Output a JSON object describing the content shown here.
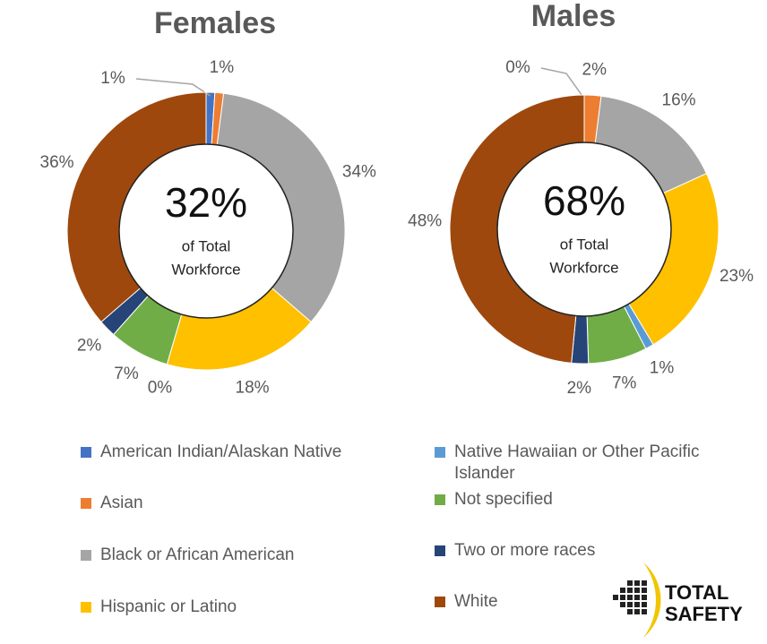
{
  "chart_data": [
    {
      "type": "pie",
      "title": "Females",
      "center": {
        "value": 32,
        "label": "32%"
      },
      "center_text": [
        "of Total",
        "Workforce"
      ],
      "categories": [
        "American Indian/Alaskan Native",
        "Asian",
        "Black or African American",
        "Hispanic or Latino",
        "Native Hawaiian or Other Pacific Islander",
        "Not specified",
        "Two or more races",
        "White"
      ],
      "values": [
        1,
        1,
        34,
        18,
        0,
        7,
        2,
        36
      ],
      "value_labels": [
        "1%",
        "1%",
        "34%",
        "18%",
        "0%",
        "7%",
        "2%",
        "36%"
      ],
      "colors": [
        "#4472c4",
        "#ed7d31",
        "#a5a5a5",
        "#ffc000",
        "#5b9bd5",
        "#70ad47",
        "#264478",
        "#9e480e"
      ]
    },
    {
      "type": "pie",
      "title": "Males",
      "center": {
        "value": 68,
        "label": "68%"
      },
      "center_text": [
        "of Total",
        "Workforce"
      ],
      "categories": [
        "American Indian/Alaskan Native",
        "Asian",
        "Black or African American",
        "Hispanic or Latino",
        "Native Hawaiian or Other Pacific Islander",
        "Not specified",
        "Two or more races",
        "White"
      ],
      "values": [
        0,
        2,
        16,
        23,
        1,
        7,
        2,
        48
      ],
      "value_labels": [
        "0%",
        "2%",
        "16%",
        "23%",
        "1%",
        "7%",
        "2%",
        "48%"
      ],
      "colors": [
        "#4472c4",
        "#ed7d31",
        "#a5a5a5",
        "#ffc000",
        "#5b9bd5",
        "#70ad47",
        "#264478",
        "#9e480e"
      ]
    }
  ],
  "logo": [
    "TOTAL",
    "SAFETY"
  ]
}
